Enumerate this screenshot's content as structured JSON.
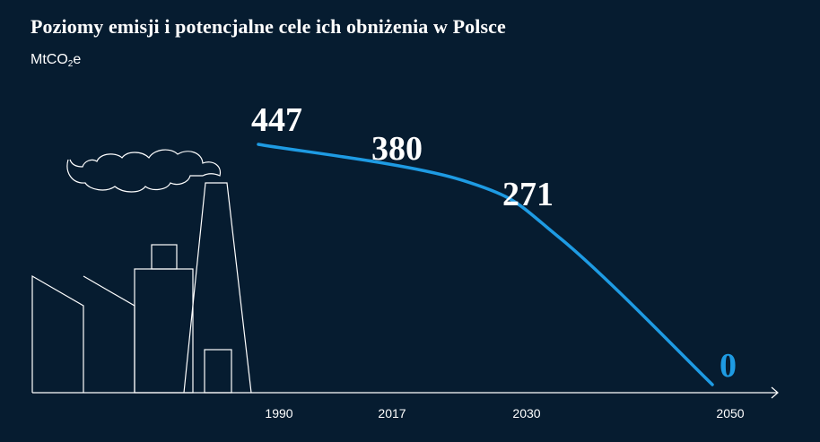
{
  "title": "Poziomy emisji i potencjalne cele ich obniżenia w Polsce",
  "unit": {
    "main": "MtCO",
    "sub": "2",
    "suffix": "e"
  },
  "colors": {
    "background": "#061c30",
    "line": "#1e9be3",
    "text": "#ffffff"
  },
  "chart_data": {
    "type": "line",
    "title": "Poziomy emisji i potencjalne cele ich obniżenia w Polsce",
    "ylabel": "MtCO2e",
    "x": [
      1990,
      2017,
      2030,
      2050
    ],
    "tick_labels": [
      "1990",
      "2017",
      "2030",
      "2050"
    ],
    "values": [
      447,
      380,
      271,
      0
    ],
    "data_labels": [
      "447",
      "380",
      "271",
      "0"
    ],
    "ylim": [
      0,
      447
    ],
    "grid": false,
    "legend": "none"
  }
}
